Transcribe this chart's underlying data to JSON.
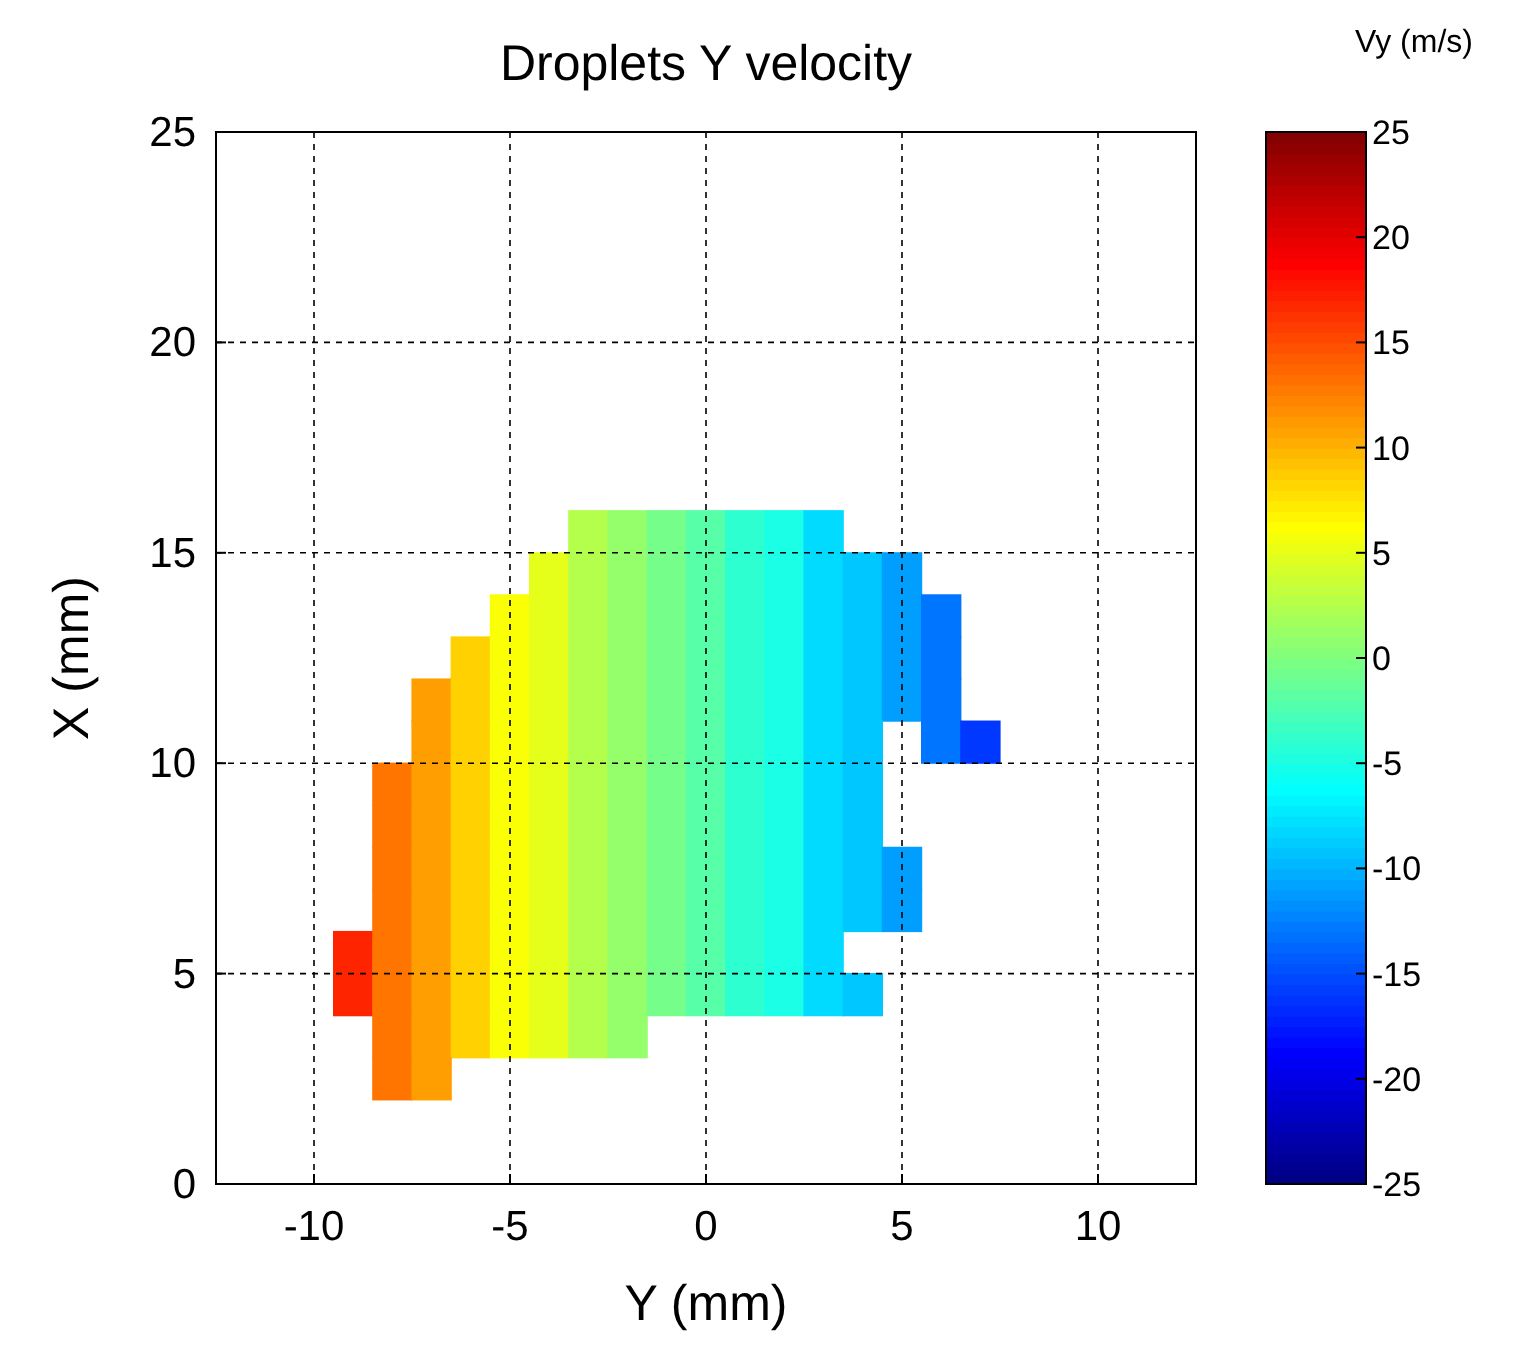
{
  "chart_data": {
    "type": "scatter",
    "title": "Droplets Y velocity",
    "xlabel": "Y (mm)",
    "ylabel": "X (mm)",
    "clabel": "Vy (m/s)",
    "xlim": [
      -12.5,
      12.5
    ],
    "xticks": [
      -10,
      -5,
      0,
      5,
      10
    ],
    "ylim": [
      0,
      25
    ],
    "yticks": [
      0,
      5,
      10,
      15,
      20,
      25
    ],
    "grid": true,
    "marker": "square",
    "clim": [
      -25,
      25
    ],
    "cticks": [
      -25,
      -20,
      -15,
      -10,
      -5,
      0,
      5,
      10,
      15,
      20,
      25
    ],
    "x": [
      -3,
      -2,
      -1,
      0,
      1,
      2,
      3,
      -4,
      -3,
      -2,
      -1,
      0,
      1,
      2,
      3,
      4,
      5,
      -5,
      -4,
      -3,
      -2,
      -1,
      0,
      1,
      2,
      3,
      4,
      5,
      6,
      -6,
      -5,
      -4,
      -3,
      -2,
      -1,
      0,
      1,
      2,
      3,
      4,
      5,
      6,
      -7,
      -6,
      -5,
      -4,
      -3,
      -2,
      -1,
      0,
      1,
      2,
      3,
      4,
      5,
      6,
      -7,
      -6,
      -5,
      -4,
      -3,
      -2,
      -1,
      0,
      1,
      2,
      3,
      4,
      6,
      7,
      -8,
      -7,
      -6,
      -5,
      -4,
      -3,
      -2,
      -1,
      0,
      1,
      2,
      3,
      4,
      -8,
      -7,
      -6,
      -5,
      -4,
      -3,
      -2,
      -1,
      0,
      1,
      2,
      3,
      4,
      -8,
      -7,
      -6,
      -5,
      -4,
      -3,
      -2,
      -1,
      0,
      1,
      2,
      3,
      4,
      5,
      -8,
      -7,
      -6,
      -5,
      -4,
      -3,
      -2,
      -1,
      0,
      1,
      2,
      3,
      4,
      5,
      -9,
      -8,
      -7,
      -6,
      -5,
      -4,
      -3,
      -2,
      -1,
      0,
      1,
      2,
      3,
      -9,
      -8,
      -7,
      -6,
      -5,
      -4,
      -3,
      -2,
      -1,
      0,
      1,
      2,
      3,
      4,
      -8,
      -7,
      -6,
      -5,
      -4,
      -3,
      -2,
      -8,
      -7
    ],
    "values": [
      15.5,
      15.5,
      15.5,
      15.5,
      15.5,
      15.5,
      15.5,
      14.5,
      14.5,
      14.5,
      14.5,
      14.5,
      14.5,
      14.5,
      14.5,
      14.5,
      14.5,
      13.5,
      13.5,
      13.5,
      13.5,
      13.5,
      13.5,
      13.5,
      13.5,
      13.5,
      13.5,
      13.5,
      13.5,
      12.5,
      12.5,
      12.5,
      12.5,
      12.5,
      12.5,
      12.5,
      12.5,
      12.5,
      12.5,
      12.5,
      12.5,
      12.5,
      11.5,
      11.5,
      11.5,
      11.5,
      11.5,
      11.5,
      11.5,
      11.5,
      11.5,
      11.5,
      11.5,
      11.5,
      11.5,
      11.5,
      10.5,
      10.5,
      10.5,
      10.5,
      10.5,
      10.5,
      10.5,
      10.5,
      10.5,
      10.5,
      10.5,
      10.5,
      10.5,
      10.5,
      9.5,
      9.5,
      9.5,
      9.5,
      9.5,
      9.5,
      9.5,
      9.5,
      9.5,
      9.5,
      9.5,
      9.5,
      9.5,
      8.5,
      8.5,
      8.5,
      8.5,
      8.5,
      8.5,
      8.5,
      8.5,
      8.5,
      8.5,
      8.5,
      8.5,
      8.5,
      7.5,
      7.5,
      7.5,
      7.5,
      7.5,
      7.5,
      7.5,
      7.5,
      7.5,
      7.5,
      7.5,
      7.5,
      7.5,
      7.5,
      6.5,
      6.5,
      6.5,
      6.5,
      6.5,
      6.5,
      6.5,
      6.5,
      6.5,
      6.5,
      6.5,
      6.5,
      6.5,
      6.5,
      5.5,
      5.5,
      5.5,
      5.5,
      5.5,
      5.5,
      5.5,
      5.5,
      5.5,
      5.5,
      5.5,
      5.5,
      5.5,
      4.5,
      4.5,
      4.5,
      4.5,
      4.5,
      4.5,
      4.5,
      4.5,
      4.5,
      4.5,
      4.5,
      4.5,
      4.5,
      4.5,
      3.5,
      3.5,
      3.5,
      3.5,
      3.5,
      3.5,
      3.5,
      2.5,
      2.5
    ],
    "cvalues": [
      2.5,
      1,
      -0.5,
      -2,
      -4,
      -5,
      -8,
      5,
      2.5,
      1,
      -0.5,
      -2,
      -4,
      -5,
      -8,
      -9,
      -11,
      6,
      5,
      2.5,
      1,
      -0.5,
      -2,
      -4,
      -5,
      -8,
      -9,
      -11,
      -13,
      8.5,
      6,
      5,
      2.5,
      1,
      -0.5,
      -2,
      -4,
      -5,
      -8,
      -9,
      -11,
      -13,
      11,
      8.5,
      6,
      5,
      2.5,
      1,
      -0.5,
      -2,
      -4,
      -5,
      -8,
      -9,
      -11,
      -13,
      11,
      8.5,
      6,
      5,
      2.5,
      1,
      -0.5,
      -2,
      -4,
      -5,
      -8,
      -9,
      -13,
      -16,
      13,
      11,
      8.5,
      6,
      5,
      2.5,
      1,
      -0.5,
      -2,
      -4,
      -5,
      -8,
      -9,
      13,
      11,
      8.5,
      6,
      5,
      2.5,
      1,
      -0.5,
      -2,
      -4,
      -5,
      -8,
      -9,
      13,
      11,
      8.5,
      6,
      5,
      2.5,
      1,
      -0.5,
      -2,
      -4,
      -5,
      -8,
      -9,
      -11,
      13,
      11,
      8.5,
      6,
      5,
      2.5,
      1,
      -0.5,
      -2,
      -4,
      -5,
      -8,
      -9,
      -11,
      17,
      13,
      11,
      8.5,
      6,
      5,
      2.5,
      1,
      -0.5,
      -2,
      -4,
      -5,
      -8,
      17,
      13,
      11,
      8.5,
      6,
      5,
      2.5,
      1,
      -0.5,
      -2,
      -4,
      -5,
      -8,
      -9,
      13,
      11,
      8.5,
      6,
      5,
      2.5,
      1,
      13,
      11
    ]
  }
}
